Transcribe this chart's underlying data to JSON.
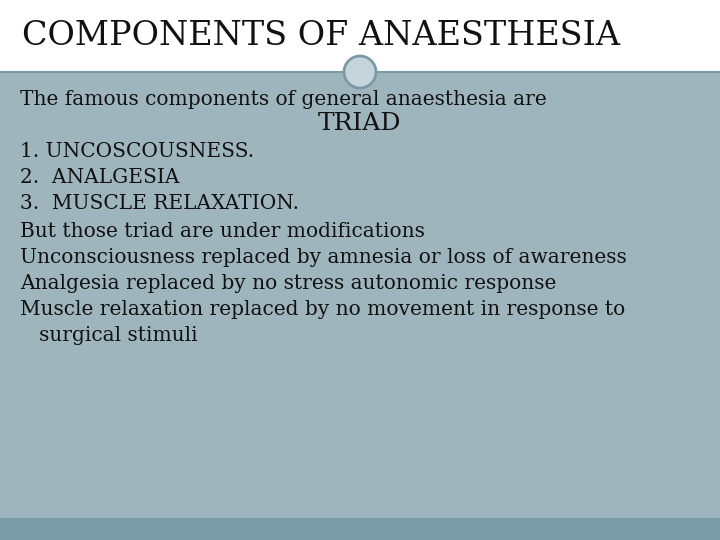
{
  "title": "COMPONENTS OF ANAESTHESIA",
  "title_color": "#111111",
  "title_bg": "#ffffff",
  "title_fontsize": 24,
  "body_bg": "#9fb5be",
  "footer_bg": "#7a9aa6",
  "line1": "The famous components of general anaesthesia are",
  "line2": "TRIAD",
  "line3": "1. UNCOSCOUSNESS.",
  "line4": "2.  ANALGESIA",
  "line5": "3.  MUSCLE RELAXATION.",
  "line6": "But those triad are under modifications",
  "line7": "Unconsciousness replaced by amnesia or loss of awareness",
  "line8": "Analgesia replaced by no stress autonomic response",
  "line9": "Muscle relaxation replaced by no movement in response to",
  "line10": "   surgical stimuli",
  "body_fontsize": 14.5,
  "triad_fontsize": 18,
  "text_color": "#111111",
  "sep_color": "#7a9aa6",
  "circle_face": "#c5d5db",
  "circle_edge": "#7a9aa6",
  "outer_bg": "#ffffff"
}
